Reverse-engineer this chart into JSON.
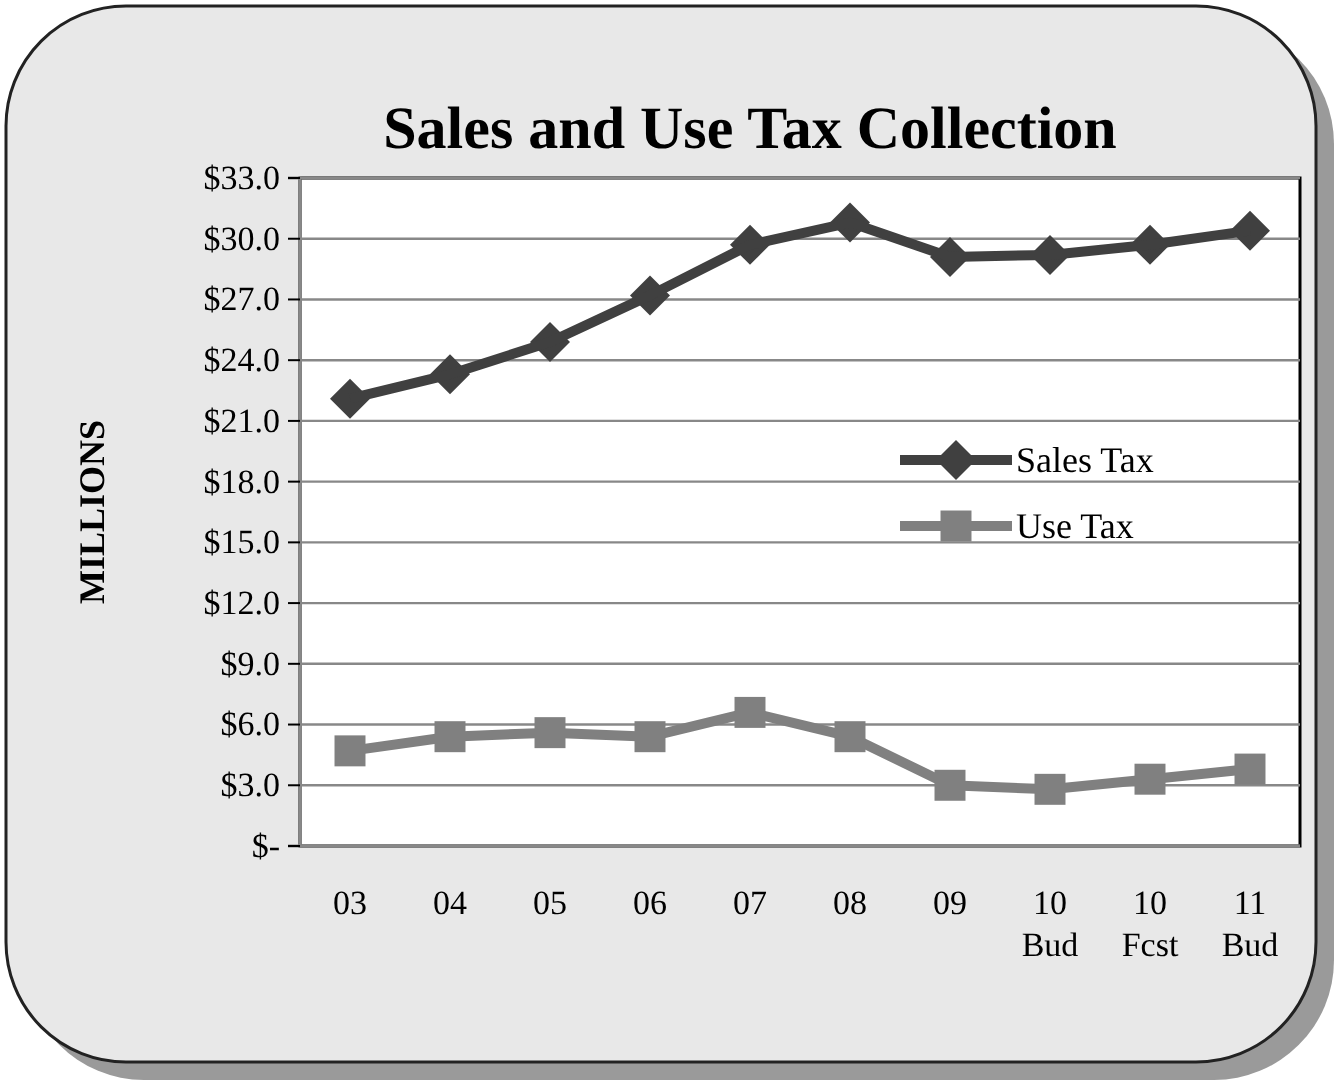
{
  "chart_data": {
    "type": "line",
    "title": "Sales and Use Tax Collection",
    "ylabel": "MILLIONS",
    "categories": [
      "03",
      "04",
      "05",
      "06",
      "07",
      "08",
      "09",
      "10\nBud",
      "10\nFcst",
      "11\nBud"
    ],
    "series": [
      {
        "name": "Sales Tax",
        "color": "#404040",
        "marker": "diamond",
        "values": [
          22.1,
          23.3,
          24.9,
          27.2,
          29.7,
          30.8,
          29.1,
          29.2,
          29.7,
          30.4
        ]
      },
      {
        "name": "Use Tax",
        "color": "#808080",
        "marker": "square",
        "values": [
          4.7,
          5.4,
          5.6,
          5.4,
          6.6,
          5.4,
          3.0,
          2.8,
          3.3,
          3.8
        ]
      }
    ],
    "ylim": [
      0,
      33
    ],
    "yticks": [
      {
        "value": 0,
        "label": "$-"
      },
      {
        "value": 3,
        "label": "$3.0"
      },
      {
        "value": 6,
        "label": "$6.0"
      },
      {
        "value": 9,
        "label": "$9.0"
      },
      {
        "value": 12,
        "label": "$12.0"
      },
      {
        "value": 15,
        "label": "$15.0"
      },
      {
        "value": 18,
        "label": "$18.0"
      },
      {
        "value": 21,
        "label": "$21.0"
      },
      {
        "value": 24,
        "label": "$24.0"
      },
      {
        "value": 27,
        "label": "$27.0"
      },
      {
        "value": 30,
        "label": "$30.0"
      },
      {
        "value": 33,
        "label": "$33.0"
      }
    ],
    "grid": "y",
    "legend": "right"
  }
}
